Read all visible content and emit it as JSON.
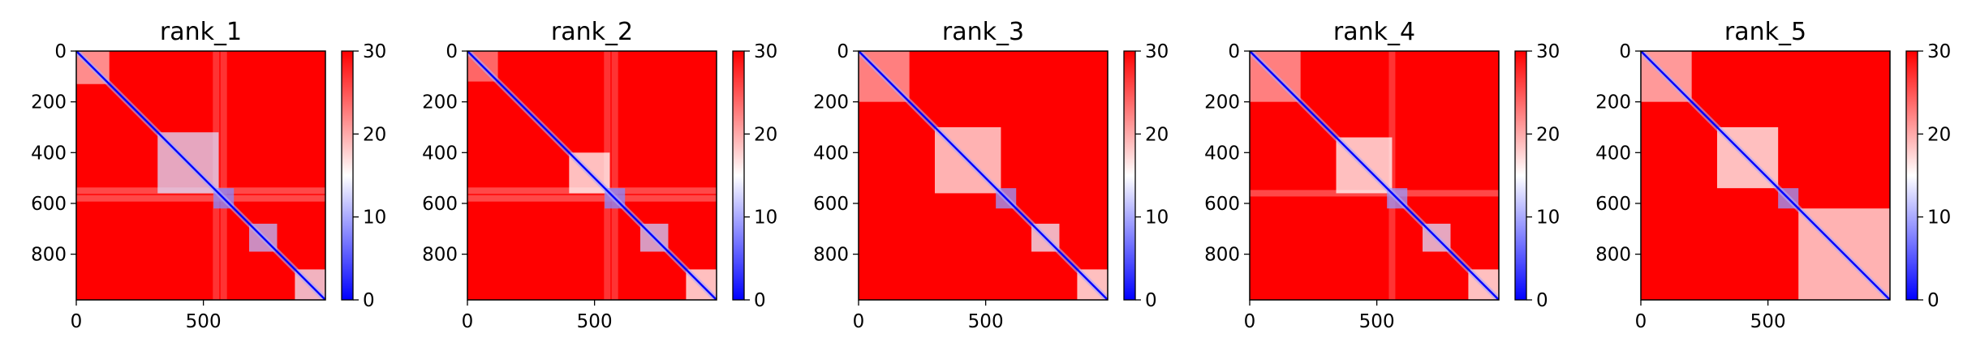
{
  "figure": {
    "background": "#ffffff"
  },
  "colorbar": {
    "colormap": "bwr",
    "colors": {
      "low": "#0000ff",
      "mid": "#ffffff",
      "high": "#ff0000"
    },
    "range": [
      0,
      30
    ],
    "ticks": [
      "0",
      "10",
      "20",
      "30"
    ],
    "tick_values": [
      0,
      10,
      20,
      30
    ]
  },
  "chart_data": [
    {
      "type": "heatmap",
      "title": "rank_1",
      "xlim": [
        0,
        980
      ],
      "ylim": [
        980,
        0
      ],
      "xticks": [
        0,
        500
      ],
      "xtick_labels": [
        "0",
        "500"
      ],
      "yticks": [
        0,
        200,
        400,
        600,
        800
      ],
      "ytick_labels": [
        "0",
        "200",
        "400",
        "600",
        "800"
      ],
      "value_range": [
        0,
        30
      ],
      "diagonal_value": 0,
      "background_value": 30,
      "low_blocks": [
        {
          "range": [
            0,
            130
          ],
          "level": 19
        },
        {
          "range": [
            320,
            560
          ],
          "level": 13
        },
        {
          "range": [
            540,
            620
          ],
          "level": 8
        },
        {
          "range": [
            680,
            790
          ],
          "level": 11
        },
        {
          "range": [
            860,
            980
          ],
          "level": 14
        }
      ],
      "band_rows": [
        550,
        580
      ]
    },
    {
      "type": "heatmap",
      "title": "rank_2",
      "xlim": [
        0,
        980
      ],
      "ylim": [
        980,
        0
      ],
      "xticks": [
        0,
        500
      ],
      "xtick_labels": [
        "0",
        "500"
      ],
      "yticks": [
        0,
        200,
        400,
        600,
        800
      ],
      "ytick_labels": [
        "0",
        "200",
        "400",
        "600",
        "800"
      ],
      "value_range": [
        0,
        30
      ],
      "diagonal_value": 0,
      "background_value": 30,
      "low_blocks": [
        {
          "range": [
            0,
            120
          ],
          "level": 22
        },
        {
          "range": [
            400,
            560
          ],
          "level": 15
        },
        {
          "range": [
            540,
            620
          ],
          "level": 8
        },
        {
          "range": [
            680,
            790
          ],
          "level": 12
        },
        {
          "range": [
            860,
            980
          ],
          "level": 15
        }
      ],
      "band_rows": [
        550,
        580
      ]
    },
    {
      "type": "heatmap",
      "title": "rank_3",
      "xlim": [
        0,
        980
      ],
      "ylim": [
        980,
        0
      ],
      "xticks": [
        0,
        500
      ],
      "xtick_labels": [
        "0",
        "500"
      ],
      "yticks": [
        0,
        200,
        400,
        600,
        800
      ],
      "ytick_labels": [
        "0",
        "200",
        "400",
        "600",
        "800"
      ],
      "value_range": [
        0,
        30
      ],
      "diagonal_value": 0,
      "background_value": 30,
      "low_blocks": [
        {
          "range": [
            0,
            200
          ],
          "level": 20
        },
        {
          "range": [
            300,
            560
          ],
          "level": 16
        },
        {
          "range": [
            540,
            620
          ],
          "level": 9
        },
        {
          "range": [
            680,
            790
          ],
          "level": 14
        },
        {
          "range": [
            860,
            980
          ],
          "level": 15
        }
      ],
      "band_rows": []
    },
    {
      "type": "heatmap",
      "title": "rank_4",
      "xlim": [
        0,
        980
      ],
      "ylim": [
        980,
        0
      ],
      "xticks": [
        0,
        500
      ],
      "xtick_labels": [
        "0",
        "500"
      ],
      "yticks": [
        0,
        200,
        400,
        600,
        800
      ],
      "ytick_labels": [
        "0",
        "200",
        "400",
        "600",
        "800"
      ],
      "value_range": [
        0,
        30
      ],
      "diagonal_value": 0,
      "background_value": 30,
      "low_blocks": [
        {
          "range": [
            0,
            200
          ],
          "level": 20
        },
        {
          "range": [
            340,
            560
          ],
          "level": 15
        },
        {
          "range": [
            540,
            620
          ],
          "level": 9
        },
        {
          "range": [
            680,
            790
          ],
          "level": 13
        },
        {
          "range": [
            860,
            980
          ],
          "level": 15
        }
      ],
      "band_rows": [
        560
      ]
    },
    {
      "type": "heatmap",
      "title": "rank_5",
      "xlim": [
        0,
        980
      ],
      "ylim": [
        980,
        0
      ],
      "xticks": [
        0,
        500
      ],
      "xtick_labels": [
        "0",
        "500"
      ],
      "yticks": [
        0,
        200,
        400,
        600,
        800
      ],
      "ytick_labels": [
        "0",
        "200",
        "400",
        "600",
        "800"
      ],
      "value_range": [
        0,
        30
      ],
      "diagonal_value": 0,
      "background_value": 30,
      "low_blocks": [
        {
          "range": [
            0,
            200
          ],
          "level": 18
        },
        {
          "range": [
            300,
            540
          ],
          "level": 15
        },
        {
          "range": [
            540,
            620
          ],
          "level": 9
        },
        {
          "range": [
            620,
            980
          ],
          "level": 16
        }
      ],
      "band_rows": []
    }
  ]
}
